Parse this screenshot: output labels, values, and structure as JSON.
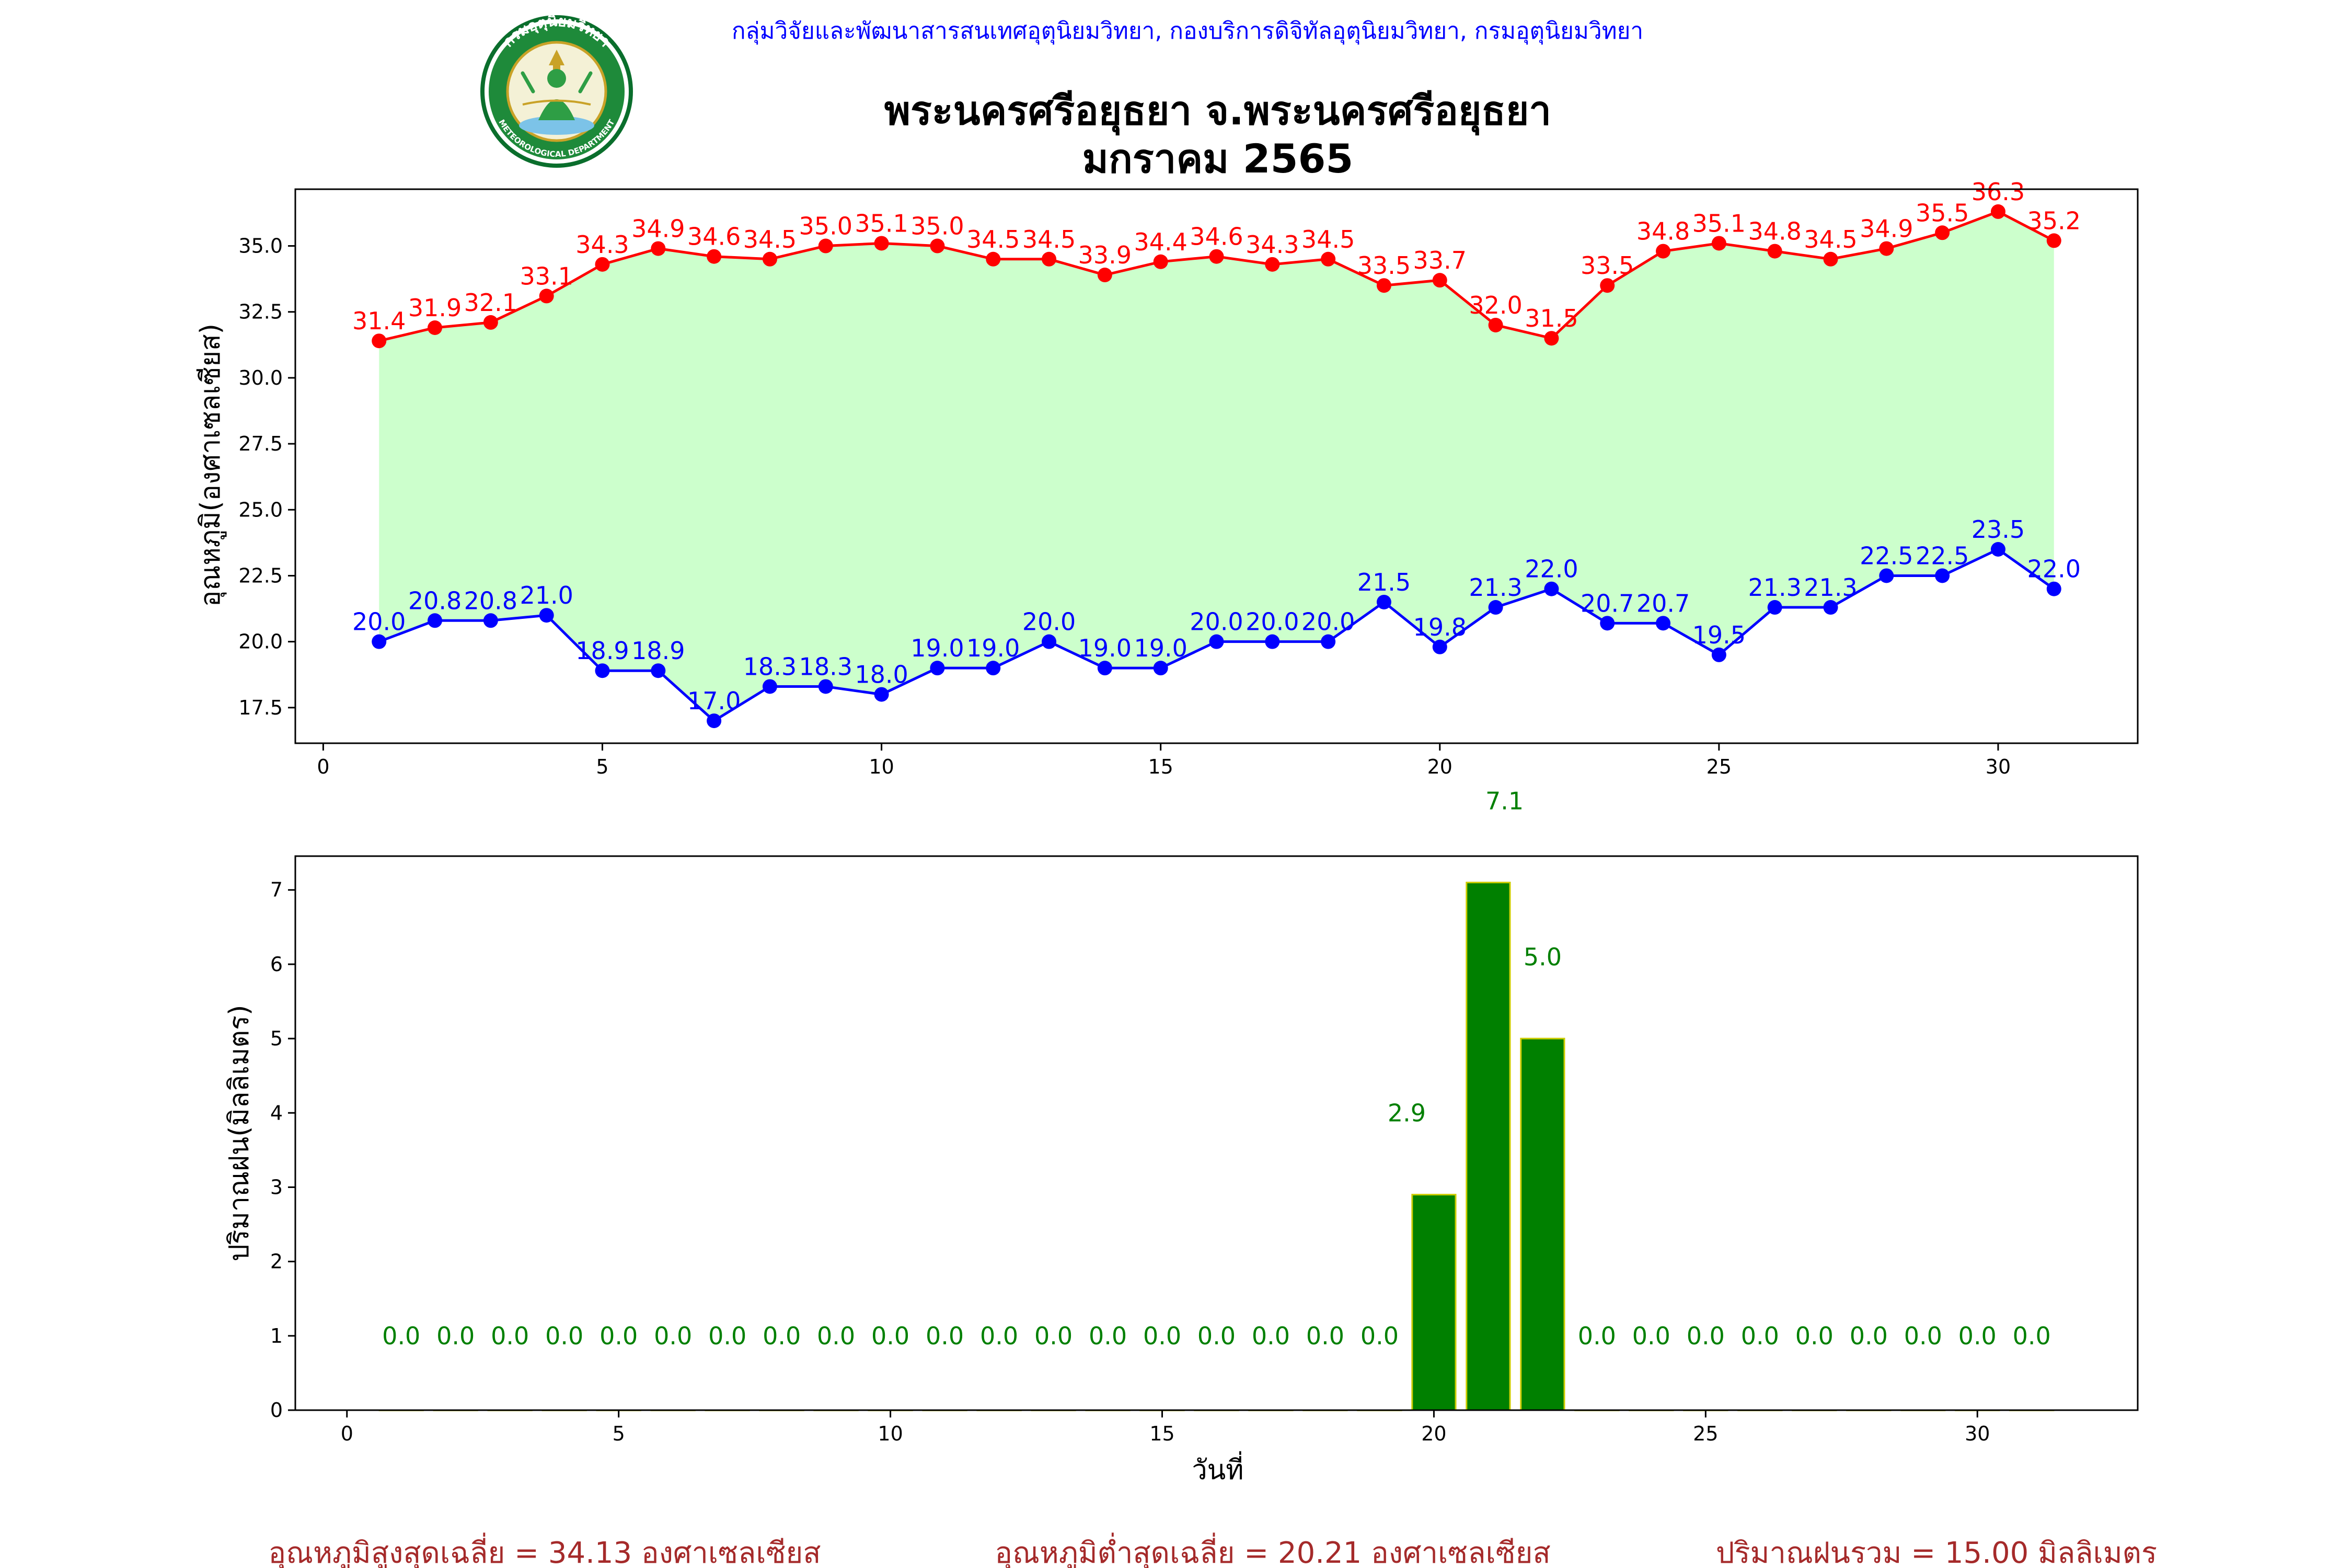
{
  "header": {
    "org_line": "กลุ่มวิจัยและพัฒนาสารสนเทศอุตุนิยมวิทยา, กองบริการดิจิทัลอุตุนิยมวิทยา, กรมอุตุนิยมวิทยา",
    "title": "พระนครศรีอยุธยา จ.พระนครศรีอยุธยา",
    "subtitle": "มกราคม 2565",
    "logo": {
      "ring_text": "กรมอุตุนิยมวิทยา",
      "bottom_text": "METEOROLOGICAL DEPARTMENT"
    }
  },
  "colors": {
    "max_temp": "#ff0000",
    "min_temp": "#0000ff",
    "fill": "#ccffcc",
    "rain_bar": "#008000",
    "rain_edge": "#cccc00",
    "rain_label": "#008000",
    "summary": "#a52a2a",
    "org_line": "#0000ff"
  },
  "chart_data": [
    {
      "type": "line",
      "ylabel": "อุณหภูมิ(องศาเซลเซียส)",
      "x": [
        1,
        2,
        3,
        4,
        5,
        6,
        7,
        8,
        9,
        10,
        11,
        12,
        13,
        14,
        15,
        16,
        17,
        18,
        19,
        20,
        21,
        22,
        23,
        24,
        25,
        26,
        27,
        28,
        29,
        30,
        31
      ],
      "series": [
        {
          "values": [
            31.4,
            31.9,
            32.1,
            33.1,
            34.3,
            34.9,
            34.6,
            34.5,
            35.0,
            35.1,
            35.0,
            34.5,
            34.5,
            33.9,
            34.4,
            34.6,
            34.3,
            34.5,
            33.5,
            33.7,
            32.0,
            31.5,
            33.5,
            34.8,
            35.1,
            34.8,
            34.5,
            34.9,
            35.5,
            36.3,
            35.2
          ]
        },
        {
          "values": [
            20.0,
            20.8,
            20.8,
            21.0,
            18.9,
            18.9,
            17.0,
            18.3,
            18.3,
            18.0,
            19.0,
            19.0,
            20.0,
            19.0,
            19.0,
            20.0,
            20.0,
            20.0,
            21.5,
            19.8,
            21.3,
            22.0,
            20.7,
            20.7,
            19.5,
            21.3,
            21.3,
            22.5,
            22.5,
            23.5,
            22.0
          ]
        }
      ],
      "xlim": [
        -0.5,
        32.5
      ],
      "ylim": [
        16.15,
        37.15
      ],
      "xticks": [
        0,
        5,
        10,
        15,
        20,
        25,
        30
      ],
      "yticks": [
        17.5,
        20.0,
        22.5,
        25.0,
        27.5,
        30.0,
        32.5,
        35.0
      ],
      "ytick_labels": [
        "17.5",
        "20.0",
        "22.5",
        "25.0",
        "27.5",
        "30.0",
        "32.5",
        "35.0"
      ],
      "fill_between": true
    },
    {
      "type": "bar",
      "xlabel": "วันที่",
      "ylabel": "ปริมาณฝน(มิลลิเมตร)",
      "x": [
        1,
        2,
        3,
        4,
        5,
        6,
        7,
        8,
        9,
        10,
        11,
        12,
        13,
        14,
        15,
        16,
        17,
        18,
        19,
        20,
        21,
        22,
        23,
        24,
        25,
        26,
        27,
        28,
        29,
        30,
        31
      ],
      "values": [
        0,
        0,
        0,
        0,
        0,
        0,
        0,
        0,
        0,
        0,
        0,
        0,
        0,
        0,
        0,
        0,
        0,
        0,
        0,
        2.9,
        7.1,
        5.0,
        0,
        0,
        0,
        0,
        0,
        0,
        0,
        0,
        0
      ],
      "value_labels": [
        "0.0",
        "0.0",
        "0.0",
        "0.0",
        "0.0",
        "0.0",
        "0.0",
        "0.0",
        "0.0",
        "0.0",
        "0.0",
        "0.0",
        "0.0",
        "0.0",
        "0.0",
        "0.0",
        "0.0",
        "0.0",
        "0.0",
        "2.9",
        "7.1",
        "5.0",
        "0.0",
        "0.0",
        "0.0",
        "0.0",
        "0.0",
        "0.0",
        "0.0",
        "0.0",
        "0.0"
      ],
      "xlim": [
        -0.95,
        32.95
      ],
      "ylim": [
        0,
        7.455
      ],
      "xticks": [
        0,
        5,
        10,
        15,
        20,
        25,
        30
      ],
      "yticks": [
        0,
        1,
        2,
        3,
        4,
        5,
        6,
        7
      ]
    }
  ],
  "summary": {
    "avg_max": "อุณหภูมิสูงสุดเฉลี่ย = 34.13 องศาเซลเซียส",
    "avg_min": "อุณหภูมิต่ำสุดเฉลี่ย = 20.21 องศาเซลเซียส",
    "total_rain": "ปริมาณฝนรวม = 15.00 มิลลิเมตร"
  }
}
